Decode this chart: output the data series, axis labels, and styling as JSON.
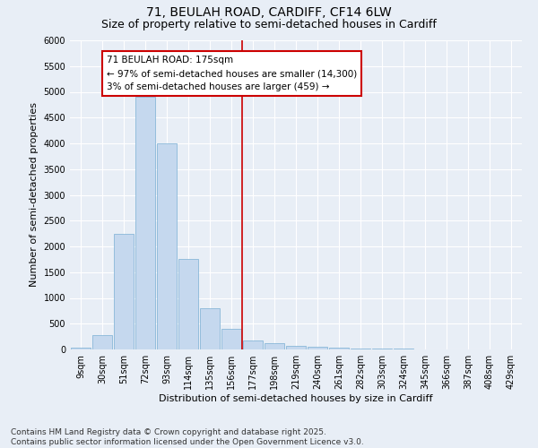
{
  "title_line1": "71, BEULAH ROAD, CARDIFF, CF14 6LW",
  "title_line2": "Size of property relative to semi-detached houses in Cardiff",
  "xlabel": "Distribution of semi-detached houses by size in Cardiff",
  "ylabel": "Number of semi-detached properties",
  "categories": [
    "9sqm",
    "30sqm",
    "51sqm",
    "72sqm",
    "93sqm",
    "114sqm",
    "135sqm",
    "156sqm",
    "177sqm",
    "198sqm",
    "219sqm",
    "240sqm",
    "261sqm",
    "282sqm",
    "303sqm",
    "324sqm",
    "345sqm",
    "366sqm",
    "387sqm",
    "408sqm",
    "429sqm"
  ],
  "values": [
    30,
    280,
    2250,
    4900,
    4000,
    1750,
    800,
    400,
    170,
    120,
    75,
    50,
    35,
    25,
    10,
    10,
    5,
    5,
    2,
    0,
    0
  ],
  "bar_color": "#c5d8ee",
  "bar_edge_color": "#7aafd4",
  "vline_color": "#cc0000",
  "annotation_title": "71 BEULAH ROAD: 175sqm",
  "annotation_line1": "← 97% of semi-detached houses are smaller (14,300)",
  "annotation_line2": "3% of semi-detached houses are larger (459) →",
  "annotation_box_facecolor": "#ffffff",
  "annotation_box_edgecolor": "#cc0000",
  "ylim": [
    0,
    6000
  ],
  "yticks": [
    0,
    500,
    1000,
    1500,
    2000,
    2500,
    3000,
    3500,
    4000,
    4500,
    5000,
    5500,
    6000
  ],
  "background_color": "#e8eef6",
  "grid_color": "#ffffff",
  "footnote_line1": "Contains HM Land Registry data © Crown copyright and database right 2025.",
  "footnote_line2": "Contains public sector information licensed under the Open Government Licence v3.0.",
  "title_fontsize": 10,
  "subtitle_fontsize": 9,
  "tick_fontsize": 7,
  "ylabel_fontsize": 8,
  "xlabel_fontsize": 8,
  "annotation_fontsize": 7.5,
  "footnote_fontsize": 6.5
}
